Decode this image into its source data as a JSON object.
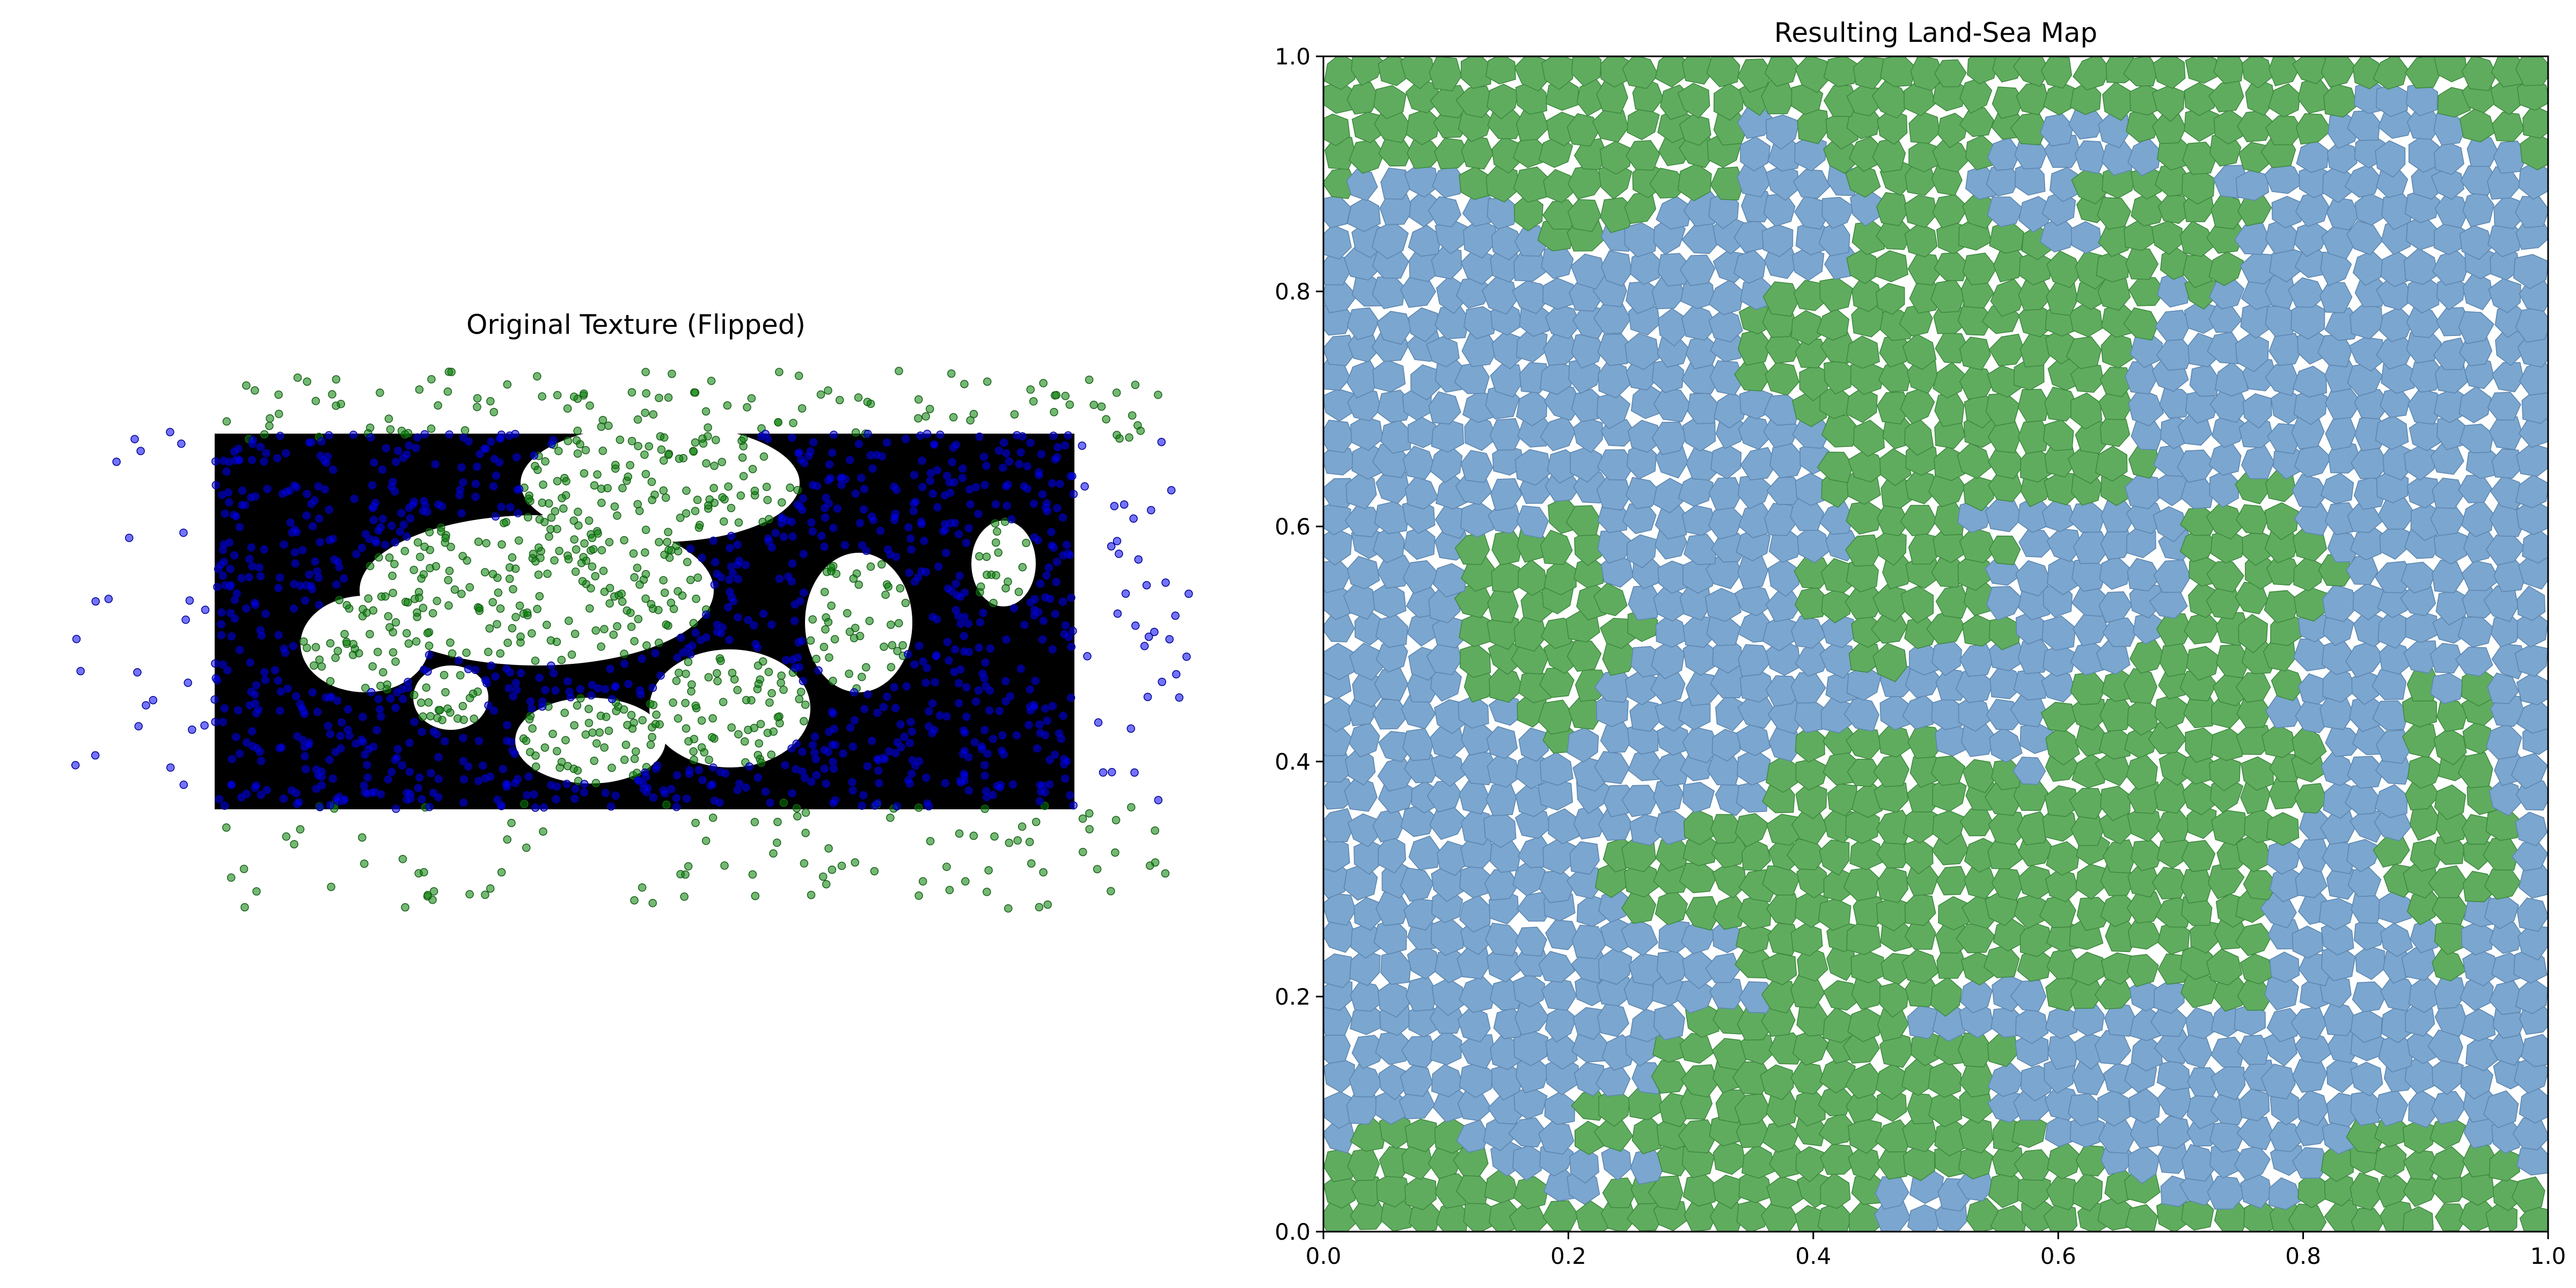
{
  "chart_data": [
    {
      "type": "scatter",
      "title": "Original Texture (Flipped)",
      "axis_visible": false,
      "series": [
        {
          "name": "",
          "color": "#008000",
          "marker_opacity": 0.55
        },
        {
          "name": "",
          "color": "#0000ff",
          "marker_opacity": 0.55
        }
      ],
      "background_fill": "#000000"
    },
    {
      "type": "heatmap",
      "title": "Resulting Land-Sea Map",
      "xlabel": "",
      "ylabel": "",
      "xlim": [
        0.0,
        1.0
      ],
      "ylim": [
        0.0,
        1.0
      ],
      "x_ticks": [
        "0.0",
        "0.2",
        "0.4",
        "0.6",
        "0.8",
        "1.0"
      ],
      "y_ticks": [
        "0.0",
        "0.2",
        "0.4",
        "0.6",
        "0.8",
        "1.0"
      ],
      "grid": false,
      "categories": [
        "land",
        "sea"
      ],
      "colors": {
        "land": "#5fac5f",
        "sea": "#7aa6cf",
        "land_edge": "#3f8a3f",
        "sea_edge": "#5e87b0"
      },
      "land_regions": [
        {
          "shape": "top-strip",
          "x": [
            0.0,
            1.0
          ],
          "y": [
            0.86,
            1.0
          ]
        },
        {
          "shape": "blob",
          "center": [
            0.52,
            0.74
          ],
          "radius": [
            0.16,
            0.14
          ]
        },
        {
          "shape": "blob",
          "center": [
            0.69,
            0.86
          ],
          "radius": [
            0.07,
            0.06
          ]
        },
        {
          "shape": "blob",
          "center": [
            0.18,
            0.52
          ],
          "radius": [
            0.07,
            0.09
          ]
        },
        {
          "shape": "blob",
          "center": [
            0.48,
            0.55
          ],
          "radius": [
            0.08,
            0.07
          ]
        },
        {
          "shape": "blob",
          "center": [
            0.49,
            0.3
          ],
          "radius": [
            0.22,
            0.12
          ]
        },
        {
          "shape": "blob",
          "center": [
            0.7,
            0.36
          ],
          "radius": [
            0.1,
            0.16
          ]
        },
        {
          "shape": "blob",
          "center": [
            0.76,
            0.55
          ],
          "radius": [
            0.06,
            0.09
          ]
        },
        {
          "shape": "blob",
          "center": [
            0.92,
            0.35
          ],
          "radius": [
            0.045,
            0.12
          ]
        },
        {
          "shape": "blob",
          "center": [
            0.4,
            0.1
          ],
          "radius": [
            0.18,
            0.08
          ]
        },
        {
          "shape": "bottom-strip",
          "x": [
            0.0,
            1.0
          ],
          "y": [
            0.0,
            0.05
          ]
        }
      ]
    }
  ]
}
